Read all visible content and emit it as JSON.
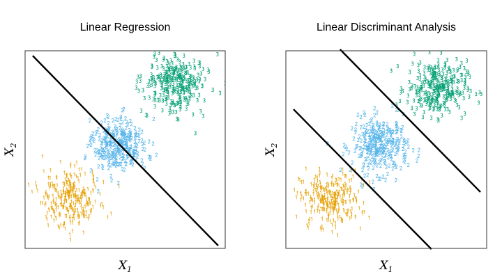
{
  "chart_data": [
    {
      "type": "scatter",
      "title": "Linear Regression",
      "xlabel": "X",
      "xlabel_sub": "1",
      "ylabel": "X",
      "ylabel_sub": "2",
      "xlim": [
        0,
        10
      ],
      "ylim": [
        0,
        10
      ],
      "grid": false,
      "axis_ticks": false,
      "marker": "class label digit",
      "series": [
        {
          "label": "1",
          "color": "#E69F00",
          "center": [
            2.2,
            2.5
          ],
          "sd": [
            0.75,
            0.7
          ],
          "n": 300
        },
        {
          "label": "2",
          "color": "#56B4E9",
          "center": [
            4.7,
            5.2
          ],
          "sd": [
            0.7,
            0.7
          ],
          "n": 300
        },
        {
          "label": "3",
          "color": "#009E73",
          "center": [
            7.5,
            8.4
          ],
          "sd": [
            0.75,
            0.7
          ],
          "n": 300
        }
      ],
      "lines": [
        {
          "x": [
            0.38,
            9.65
          ],
          "y": [
            9.75,
            0.14
          ],
          "color": "#000000"
        }
      ]
    },
    {
      "type": "scatter",
      "title": "Linear Discriminant Analysis",
      "xlabel": "X",
      "xlabel_sub": "1",
      "ylabel": "X",
      "ylabel_sub": "2",
      "xlim": [
        0,
        10
      ],
      "ylim": [
        0,
        10
      ],
      "grid": false,
      "axis_ticks": false,
      "marker": "class label digit",
      "series": [
        {
          "label": "1",
          "color": "#E69F00",
          "center": [
            2.2,
            2.5
          ],
          "sd": [
            0.75,
            0.7
          ],
          "n": 300
        },
        {
          "label": "2",
          "color": "#56B4E9",
          "center": [
            4.7,
            5.2
          ],
          "sd": [
            0.7,
            0.7
          ],
          "n": 300
        },
        {
          "label": "3",
          "color": "#009E73",
          "center": [
            7.5,
            8.1
          ],
          "sd": [
            0.75,
            0.7
          ],
          "n": 300
        }
      ],
      "lines": [
        {
          "x": [
            2.7,
            9.69
          ],
          "y": [
            10.07,
            2.85
          ],
          "color": "#000000"
        },
        {
          "x": [
            0.38,
            7.25
          ],
          "y": [
            7.04,
            -0.04
          ],
          "color": "#000000"
        }
      ]
    }
  ]
}
